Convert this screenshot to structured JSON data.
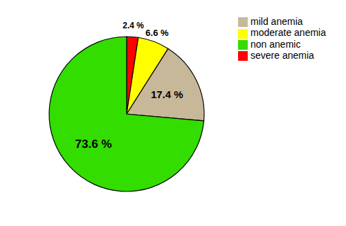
{
  "chart_data": {
    "type": "pie",
    "categories": [
      "severe anemia",
      "moderate anemia",
      "mild anemia",
      "non anemic"
    ],
    "values": [
      2.4,
      6.6,
      17.4,
      73.6
    ],
    "value_labels": [
      "2.4 %",
      "6.6 %",
      "17.4 %",
      "73.6 %"
    ],
    "colors": [
      "#ff0000",
      "#ffff00",
      "#c8b89a",
      "#33dd00"
    ],
    "data_labels": true,
    "legend": "upper right"
  }
}
